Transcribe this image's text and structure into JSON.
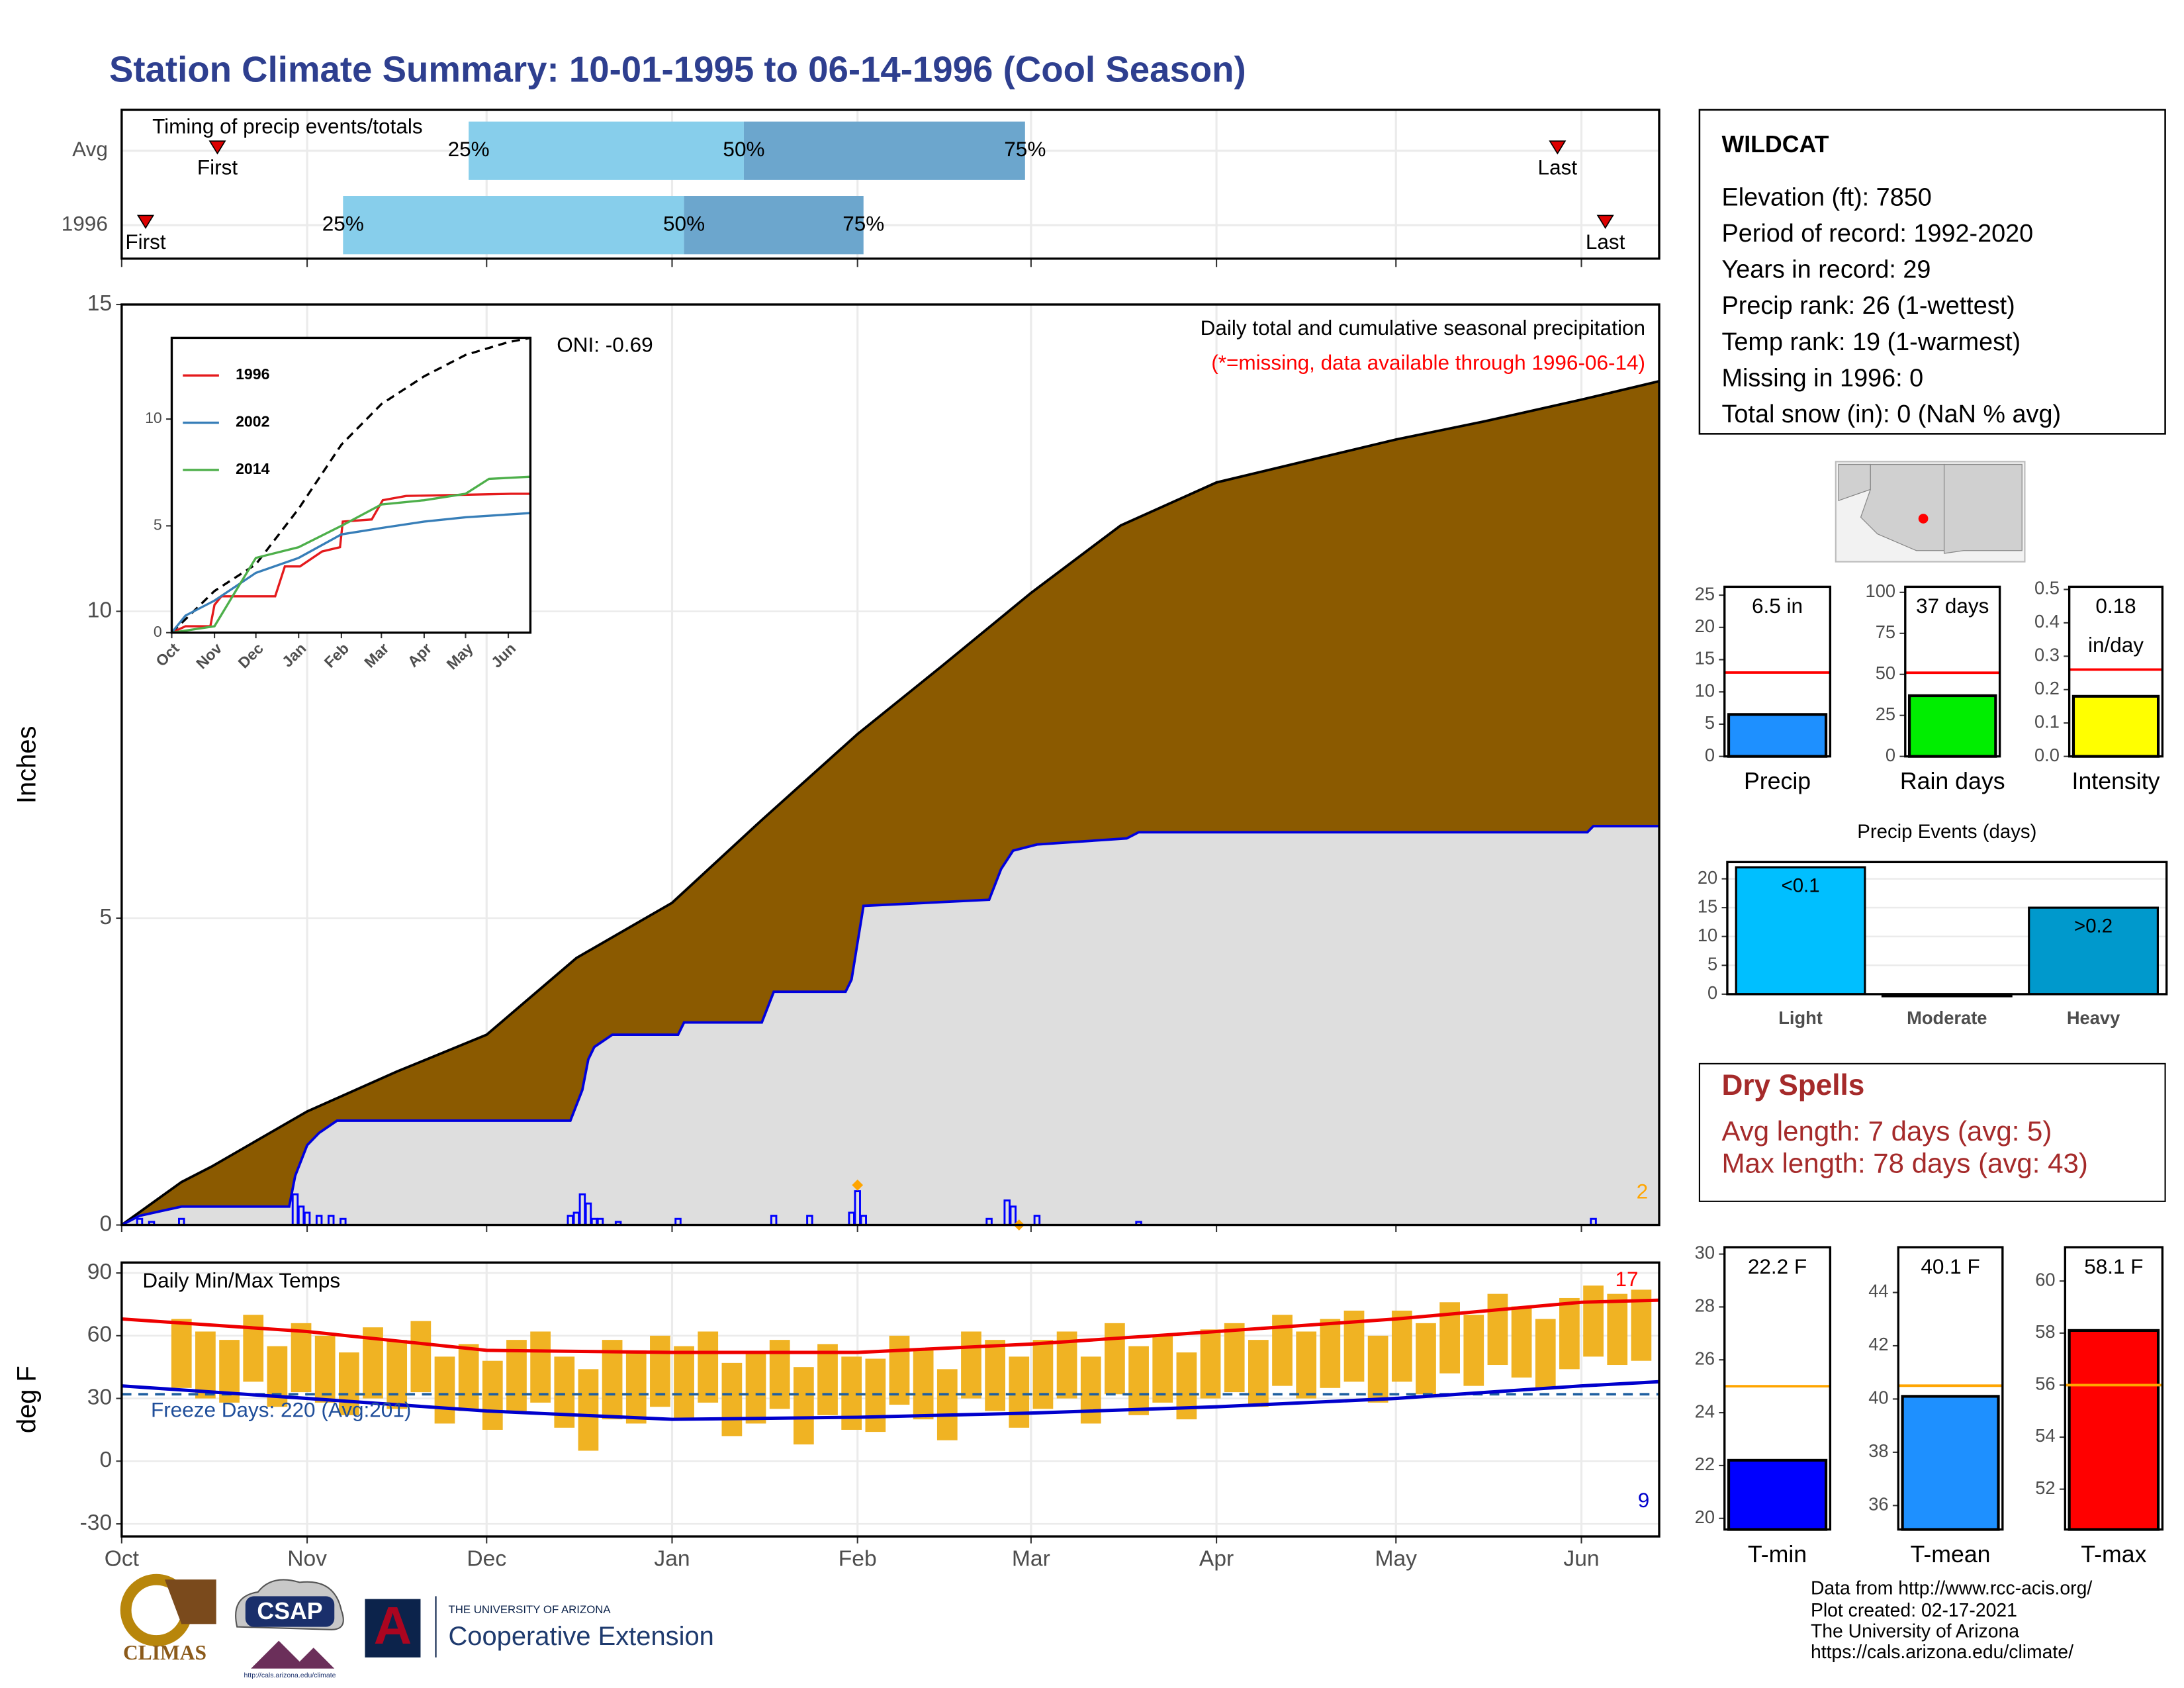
{
  "title": "Station Climate Summary: 10-01-1995 to 06-14-1996 (Cool Season)",
  "chart_data": [
    {
      "type": "timing",
      "title": "Timing of precip events/totals",
      "xlim": [
        0,
        257
      ],
      "xticks": [
        0,
        31,
        61,
        92,
        123,
        152,
        183,
        213,
        244
      ],
      "colors": [
        "#87ceeb",
        "#6ca6cd"
      ],
      "marker_color": "#dd0000",
      "marker_labels": {
        "first": "First",
        "p25": "25%",
        "p50": "50%",
        "p75": "75%",
        "last": "Last"
      },
      "rows": [
        {
          "name": "Avg",
          "first": 16,
          "p25": 58,
          "p50": 104,
          "p75": 151,
          "last": 240
        },
        {
          "name": "1996",
          "first": 4,
          "p25": 37,
          "p50": 94,
          "p75": 124,
          "last": 248
        }
      ]
    },
    {
      "type": "area",
      "ylabel": "Inches",
      "xlim": [
        0,
        257
      ],
      "ylim": [
        0,
        15
      ],
      "xticks": [
        0,
        31,
        61,
        92,
        123,
        152,
        183,
        213,
        244
      ],
      "yticks": [
        0,
        5,
        10,
        15
      ],
      "grid": true,
      "annotations": [
        {
          "text": "Daily total and cumulative seasonal precipitation",
          "color": "#000000"
        },
        {
          "text": "(*=missing, data available through 1996-06-14)",
          "color": "#ff0000"
        },
        {
          "text": "ONI: -0.69",
          "color": "#000000"
        },
        {
          "text": "2",
          "color": "#ffa500"
        }
      ],
      "series": [
        {
          "color": "#8b5a00",
          "line_color": "#000000",
          "x": [
            0,
            10,
            15,
            31,
            46,
            61,
            76,
            92,
            107,
            123,
            137,
            152,
            167,
            183,
            198,
            213,
            228,
            244,
            257
          ],
          "values": [
            0,
            0.7,
            0.95,
            1.85,
            2.5,
            3.1,
            4.35,
            5.25,
            6.6,
            8.0,
            9.1,
            10.3,
            11.4,
            12.1,
            12.45,
            12.8,
            13.1,
            13.45,
            13.75
          ]
        },
        {
          "color": "#dedede",
          "line_color": "#0000dd",
          "x": [
            0,
            3,
            10,
            28,
            29,
            31,
            33,
            36,
            75,
            77,
            78,
            79,
            82,
            93,
            94,
            107,
            109,
            121,
            122,
            123,
            124,
            145,
            147,
            149,
            153,
            168,
            170,
            245,
            246,
            257
          ],
          "values": [
            0,
            0.15,
            0.3,
            0.3,
            0.8,
            1.3,
            1.5,
            1.7,
            1.7,
            2.2,
            2.7,
            2.9,
            3.1,
            3.1,
            3.3,
            3.3,
            3.8,
            3.8,
            4.0,
            4.6,
            5.2,
            5.3,
            5.8,
            6.1,
            6.2,
            6.3,
            6.4,
            6.4,
            6.5,
            6.5
          ]
        }
      ],
      "bars": {
        "color": "#0000ff",
        "x": [
          3,
          5,
          10,
          29,
          30,
          31,
          33,
          35,
          37,
          75,
          76,
          77,
          78,
          79,
          80,
          83,
          93,
          109,
          115,
          122,
          123,
          124,
          145,
          148,
          149,
          153,
          170,
          246
        ],
        "values": [
          0.1,
          0.05,
          0.1,
          0.5,
          0.3,
          0.2,
          0.15,
          0.15,
          0.1,
          0.15,
          0.2,
          0.5,
          0.35,
          0.1,
          0.1,
          0.05,
          0.1,
          0.15,
          0.15,
          0.2,
          0.55,
          0.15,
          0.1,
          0.4,
          0.3,
          0.15,
          0.05,
          0.1
        ]
      },
      "markers": {
        "color": "#ffa500",
        "x": [
          123,
          150
        ],
        "values": [
          0.65,
          0
        ]
      }
    },
    {
      "type": "line",
      "xlim": [
        0,
        260
      ],
      "ylim": [
        0,
        13.8
      ],
      "xticks": [
        {
          "value": 0,
          "label": "Oct"
        },
        {
          "value": 31,
          "label": "Nov"
        },
        {
          "value": 61,
          "label": "Dec"
        },
        {
          "value": 92,
          "label": "Jan"
        },
        {
          "value": 123,
          "label": "Feb"
        },
        {
          "value": 152,
          "label": "Mar"
        },
        {
          "value": 183,
          "label": "Apr"
        },
        {
          "value": 213,
          "label": "May"
        },
        {
          "value": 244,
          "label": "Jun"
        }
      ],
      "yticks": [
        0,
        5,
        10
      ],
      "series": [
        {
          "color": "#000000",
          "dash": true,
          "x": [
            0,
            31,
            61,
            92,
            123,
            152,
            183,
            213,
            244,
            260
          ],
          "values": [
            0,
            1.95,
            3.2,
            5.8,
            8.8,
            10.7,
            12,
            13,
            13.6,
            13.8
          ]
        },
        {
          "name": "1996",
          "color": "#e41a1c",
          "x": [
            0,
            10,
            28,
            31,
            36,
            75,
            82,
            93,
            109,
            122,
            124,
            145,
            153,
            170,
            246,
            260
          ],
          "values": [
            0,
            0.3,
            0.3,
            1.3,
            1.7,
            1.7,
            3.1,
            3.1,
            3.8,
            4.0,
            5.2,
            5.3,
            6.2,
            6.4,
            6.5,
            6.5
          ]
        },
        {
          "name": "2002",
          "color": "#377eb8",
          "x": [
            0,
            10,
            31,
            61,
            92,
            123,
            152,
            183,
            213,
            260
          ],
          "values": [
            0,
            0.8,
            1.5,
            2.8,
            3.5,
            4.6,
            4.9,
            5.2,
            5.4,
            5.6
          ]
        },
        {
          "name": "2014",
          "color": "#4daf4a",
          "x": [
            0,
            31,
            45,
            61,
            92,
            123,
            152,
            183,
            213,
            230,
            260
          ],
          "values": [
            0,
            0.3,
            1.8,
            3.5,
            4,
            5,
            6,
            6.2,
            6.5,
            7.2,
            7.3
          ]
        }
      ]
    },
    {
      "type": "range",
      "title": "Daily Min/Max Temps",
      "ylabel": "deg F",
      "xlim": [
        0,
        257
      ],
      "ylim": [
        -36,
        95
      ],
      "xticks": [
        {
          "value": 0,
          "label": "Oct"
        },
        {
          "value": 31,
          "label": "Nov"
        },
        {
          "value": 61,
          "label": "Dec"
        },
        {
          "value": 92,
          "label": "Jan"
        },
        {
          "value": 123,
          "label": "Feb"
        },
        {
          "value": 152,
          "label": "Mar"
        },
        {
          "value": 183,
          "label": "Apr"
        },
        {
          "value": 213,
          "label": "May"
        },
        {
          "value": 244,
          "label": "Jun"
        }
      ],
      "yticks": [
        -30,
        0,
        30,
        60,
        90
      ],
      "grid": true,
      "color": "#f0b323",
      "x": [
        10,
        14,
        18,
        22,
        26,
        30,
        34,
        38,
        42,
        46,
        50,
        54,
        58,
        62,
        66,
        70,
        74,
        78,
        82,
        86,
        90,
        94,
        98,
        102,
        106,
        110,
        114,
        118,
        122,
        126,
        130,
        134,
        138,
        142,
        146,
        150,
        154,
        158,
        162,
        166,
        170,
        174,
        178,
        182,
        186,
        190,
        194,
        198,
        202,
        206,
        210,
        214,
        218,
        222,
        226,
        230,
        234,
        238,
        242,
        246,
        250,
        254
      ],
      "highs": [
        68,
        62,
        58,
        70,
        55,
        66,
        60,
        52,
        64,
        58,
        67,
        50,
        56,
        48,
        58,
        62,
        50,
        44,
        58,
        53,
        60,
        55,
        62,
        47,
        52,
        58,
        45,
        56,
        50,
        49,
        60,
        53,
        44,
        62,
        58,
        50,
        58,
        62,
        50,
        66,
        55,
        60,
        52,
        63,
        66,
        58,
        70,
        62,
        68,
        72,
        60,
        72,
        66,
        76,
        70,
        80,
        74,
        68,
        78,
        84,
        80,
        82
      ],
      "lows": [
        35,
        30,
        28,
        38,
        26,
        33,
        28,
        22,
        30,
        25,
        33,
        18,
        24,
        15,
        24,
        28,
        16,
        5,
        20,
        18,
        26,
        20,
        28,
        12,
        18,
        25,
        8,
        22,
        15,
        14,
        27,
        20,
        10,
        30,
        24,
        16,
        25,
        30,
        18,
        32,
        22,
        28,
        20,
        30,
        33,
        26,
        36,
        30,
        35,
        38,
        28,
        38,
        32,
        42,
        36,
        46,
        40,
        35,
        44,
        50,
        46,
        48
      ],
      "lines": [
        {
          "color": "#ee0000",
          "x": [
            0,
            31,
            61,
            92,
            123,
            152,
            183,
            213,
            244,
            257
          ],
          "values": [
            68,
            62,
            53,
            52,
            52,
            56,
            62,
            68,
            76,
            77
          ]
        },
        {
          "color": "#0000cc",
          "x": [
            0,
            31,
            61,
            92,
            123,
            152,
            183,
            213,
            244,
            257
          ],
          "values": [
            36,
            30,
            24,
            20,
            21,
            23,
            26,
            30,
            36,
            38
          ]
        }
      ],
      "freeze": 32,
      "freeze_color": "#1f5fa0",
      "annotations": [
        {
          "text": "Freeze Days: 220 (Avg:201)",
          "color": "#1f4e9a"
        },
        {
          "text": "17",
          "color": "#ff0000"
        },
        {
          "text": "9",
          "color": "#0000cc"
        }
      ]
    },
    {
      "type": "bar",
      "xlabel": "Precip",
      "value": 6.5,
      "value_label": "6.5 in",
      "average": 13,
      "color": "#1e90ff",
      "avg_color": "#ff0000",
      "ylim": [
        0,
        26.3
      ],
      "yticks": [
        0,
        5,
        10,
        15,
        20,
        25
      ]
    },
    {
      "type": "bar",
      "xlabel": "Rain days",
      "value": 37,
      "value_label": "37 days",
      "average": 51,
      "color": "#00ee00",
      "avg_color": "#ff0000",
      "ylim": [
        0,
        103.4
      ],
      "yticks": [
        0,
        25,
        50,
        75,
        100
      ]
    },
    {
      "type": "bar",
      "xlabel": "Intensity",
      "value": 0.18,
      "value_label": "0.18",
      "unit": "in/day",
      "average": 0.26,
      "color": "#ffff00",
      "avg_color": "#ff0000",
      "ylim": [
        0,
        0.508
      ],
      "yticks": [
        {
          "value": 0,
          "label": "0.0"
        },
        0.1,
        0.2,
        0.3,
        0.4,
        0.5
      ]
    },
    {
      "type": "bar",
      "title": "Precip Events (days)",
      "categories": [
        "Light",
        "Moderate",
        "Heavy"
      ],
      "values": [
        22,
        0,
        15
      ],
      "value_labels": [
        "<0.1",
        null,
        ">0.2"
      ],
      "colors": [
        "#00bfff",
        "#00bfff",
        "#0099cc"
      ],
      "ylim": [
        0,
        22.9
      ],
      "yticks": [
        0,
        5,
        10,
        15,
        20
      ],
      "grid": true
    },
    {
      "type": "bar",
      "xlabel": "T-min",
      "value": 22.2,
      "value_label": "22.2 F",
      "average": 25,
      "color": "#0000ff",
      "avg_color": "#ffa500",
      "ylim": [
        19.58,
        30.26
      ],
      "yticks": [
        20,
        22,
        24,
        26,
        28,
        30
      ]
    },
    {
      "type": "bar",
      "xlabel": "T-mean",
      "value": 40.1,
      "value_label": "40.1 F",
      "average": 40.5,
      "color": "#1e90ff",
      "avg_color": "#ffa500",
      "ylim": [
        35.1,
        45.7
      ],
      "yticks": [
        36,
        38,
        40,
        42,
        44
      ]
    },
    {
      "type": "bar",
      "xlabel": "T-max",
      "value": 58.1,
      "value_label": "58.1 F",
      "average": 56,
      "color": "#ff0000",
      "avg_color": "#ffa500",
      "ylim": [
        50.45,
        61.3
      ],
      "yticks": [
        52,
        54,
        56,
        58,
        60
      ]
    }
  ],
  "station": {
    "name": "WILDCAT",
    "lines": [
      "Elevation (ft): 7850",
      "Period of record: 1992-2020",
      "Years in record: 29",
      "Precip rank: 26 (1-wettest)",
      "Temp rank: 19 (1-warmest)",
      "Missing in 1996: 0",
      "Total snow (in): 0 (NaN % avg)"
    ]
  },
  "dry_spells": {
    "title": "Dry Spells",
    "lines": [
      "Avg length: 7 days (avg: 5)",
      "Max length: 78 days (avg: 43)"
    ]
  },
  "footer": [
    "Data from http://www.rcc-acis.org/",
    "Plot created: 02-17-2021",
    "The University of Arizona",
    "https://cals.arizona.edu/climate/"
  ],
  "logos": {
    "climas": "CLIMAS",
    "csap": "CSAP",
    "csap_url": "http://cals.arizona.edu/climate",
    "ua_letter": "A",
    "ua_top": "THE UNIVERSITY OF ARIZONA",
    "ua_main": "Cooperative Extension"
  }
}
